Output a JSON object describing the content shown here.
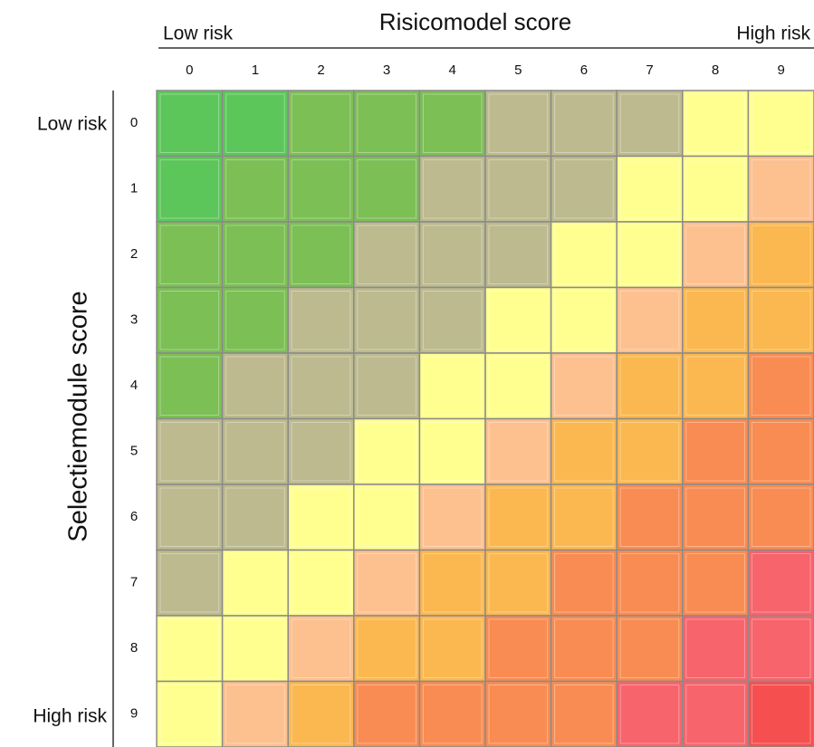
{
  "chart_data": {
    "type": "heatmap",
    "title": "Risicomodel score",
    "x_low_label": "Low risk",
    "x_high_label": "High risk",
    "ylabel": "Selectiemodule score",
    "y_low_label": "Low risk",
    "y_high_label": "High risk",
    "x_categories": [
      "0",
      "1",
      "2",
      "3",
      "4",
      "5",
      "6",
      "7",
      "8",
      "9"
    ],
    "y_categories": [
      "0",
      "1",
      "2",
      "3",
      "4",
      "5",
      "6",
      "7",
      "8",
      "9"
    ],
    "colors": [
      [
        "#5cc65a",
        "#5cc65a",
        "#7cbf55",
        "#7cbf55",
        "#7cbf55",
        "#bcba8e",
        "#bcba8e",
        "#bcba8e",
        "#ffff90",
        "#ffff90"
      ],
      [
        "#5cc65a",
        "#7cbf55",
        "#7cbf55",
        "#7cbf55",
        "#bcba8e",
        "#bcba8e",
        "#bcba8e",
        "#ffff90",
        "#ffff90",
        "#fdc08f"
      ],
      [
        "#7cbf55",
        "#7cbf55",
        "#7cbf55",
        "#bcba8e",
        "#bcba8e",
        "#bcba8e",
        "#ffff90",
        "#ffff90",
        "#fdc08f",
        "#fbb850"
      ],
      [
        "#7cbf55",
        "#7cbf55",
        "#bcba8e",
        "#bcba8e",
        "#bcba8e",
        "#ffff90",
        "#ffff90",
        "#fdc08f",
        "#fbb850",
        "#fbb850"
      ],
      [
        "#7cbf55",
        "#bcba8e",
        "#bcba8e",
        "#bcba8e",
        "#ffff90",
        "#ffff90",
        "#fdc08f",
        "#fbb850",
        "#fbb850",
        "#f98c52"
      ],
      [
        "#bcba8e",
        "#bcba8e",
        "#bcba8e",
        "#ffff90",
        "#ffff90",
        "#fdc08f",
        "#fbb850",
        "#fbb850",
        "#f98c52",
        "#f98c52"
      ],
      [
        "#bcba8e",
        "#bcba8e",
        "#ffff90",
        "#ffff90",
        "#fdc08f",
        "#fbb850",
        "#fbb850",
        "#f98c52",
        "#f98c52",
        "#f98c52"
      ],
      [
        "#bcba8e",
        "#ffff90",
        "#ffff90",
        "#fdc08f",
        "#fbb850",
        "#fbb850",
        "#f98c52",
        "#f98c52",
        "#f98c52",
        "#f7646c"
      ],
      [
        "#ffff90",
        "#ffff90",
        "#fdc08f",
        "#fbb850",
        "#fbb850",
        "#f98c52",
        "#f98c52",
        "#f98c52",
        "#f7646c",
        "#f7646c"
      ],
      [
        "#ffff90",
        "#fdc08f",
        "#fbb850",
        "#f98c52",
        "#f98c52",
        "#f98c52",
        "#f98c52",
        "#f7646c",
        "#f7646c",
        "#f5504f"
      ]
    ]
  }
}
